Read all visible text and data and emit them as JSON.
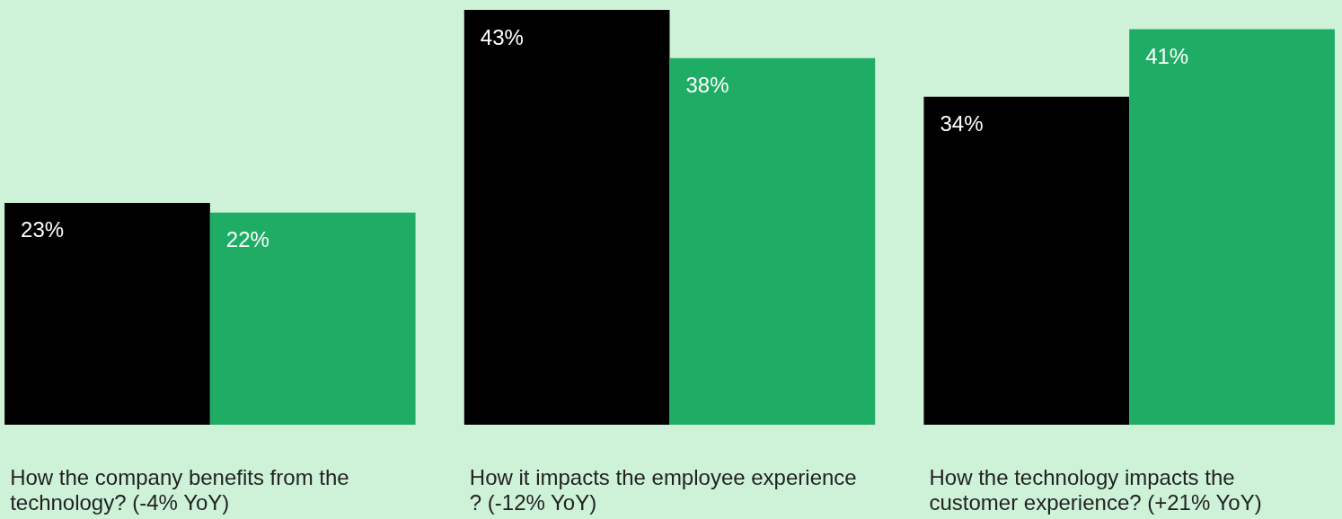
{
  "chart_data": {
    "type": "bar",
    "categories": [
      "How the company benefits from the technology? (-4% YoY)",
      "How it impacts the employee experience? (-12% YoY)",
      "How the technology impacts the customer experience? (+21% YoY)"
    ],
    "series": [
      {
        "color": "#000000",
        "values": [
          23,
          43,
          34
        ],
        "value_labels": [
          "23%",
          "43%",
          "34%"
        ]
      },
      {
        "color": "#1fad66",
        "values": [
          22,
          38,
          41
        ],
        "value_labels": [
          "22%",
          "38%",
          "41%"
        ]
      }
    ],
    "grid": false
  }
}
